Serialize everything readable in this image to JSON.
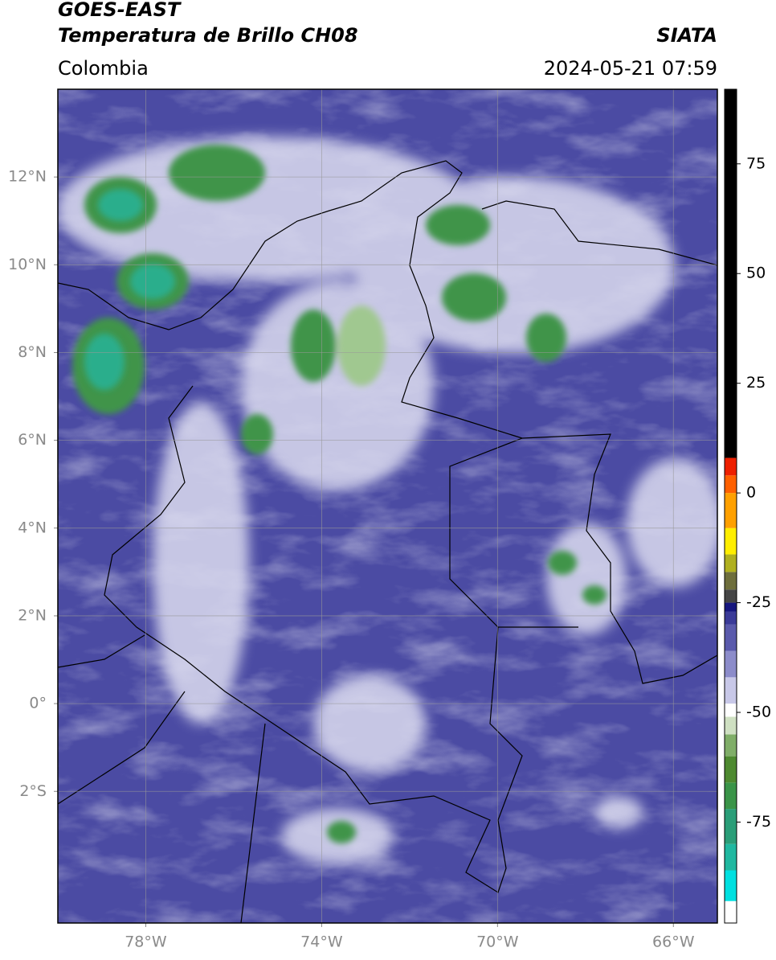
{
  "header": {
    "title": "GOES-EAST",
    "subtitle": "Temperatura de Brillo CH08",
    "source": "SIATA",
    "region": "Colombia",
    "datetime": "2024-05-21 07:59"
  },
  "map": {
    "xlim": [
      -80,
      -65
    ],
    "ylim": [
      -5,
      14
    ],
    "xticks": [
      {
        "value": -78,
        "label": "78°W"
      },
      {
        "value": -74,
        "label": "74°W"
      },
      {
        "value": -70,
        "label": "70°W"
      },
      {
        "value": -66,
        "label": "66°W"
      }
    ],
    "yticks": [
      {
        "value": 12,
        "label": "12°N"
      },
      {
        "value": 10,
        "label": "10°N"
      },
      {
        "value": 8,
        "label": "8°N"
      },
      {
        "value": 6,
        "label": "6°N"
      },
      {
        "value": 4,
        "label": "4°N"
      },
      {
        "value": 2,
        "label": "2°N"
      },
      {
        "value": 0,
        "label": "0°"
      },
      {
        "value": -2,
        "label": "2°S"
      }
    ],
    "grid": true
  },
  "colorbar": {
    "clim": [
      -98,
      92
    ],
    "ticks": [
      75,
      50,
      25,
      0,
      -25,
      -50,
      -75
    ],
    "stops": [
      {
        "value": -98,
        "color": "#ffffff"
      },
      {
        "value": -93,
        "color": "#00e0e0"
      },
      {
        "value": -86,
        "color": "#20b8a0"
      },
      {
        "value": -80,
        "color": "#2a9e78"
      },
      {
        "value": -72,
        "color": "#3a9448"
      },
      {
        "value": -66,
        "color": "#4e8a30"
      },
      {
        "value": -60,
        "color": "#80ae68"
      },
      {
        "value": -55,
        "color": "#cfe0c2"
      },
      {
        "value": -51,
        "color": "#ffffff"
      },
      {
        "value": -48,
        "color": "#c8c8e8"
      },
      {
        "value": -42,
        "color": "#8c8cca"
      },
      {
        "value": -36,
        "color": "#5a5aac"
      },
      {
        "value": -30,
        "color": "#3a3a98"
      },
      {
        "value": -27,
        "color": "#16167e"
      },
      {
        "value": -25,
        "color": "#454545"
      },
      {
        "value": -22,
        "color": "#6e6e3c"
      },
      {
        "value": -18,
        "color": "#b0b020"
      },
      {
        "value": -14,
        "color": "#ffee00"
      },
      {
        "value": -8,
        "color": "#ffa000"
      },
      {
        "value": 0,
        "color": "#ff6000"
      },
      {
        "value": 4,
        "color": "#ee2000"
      },
      {
        "value": 8,
        "color": "#000000"
      }
    ]
  }
}
